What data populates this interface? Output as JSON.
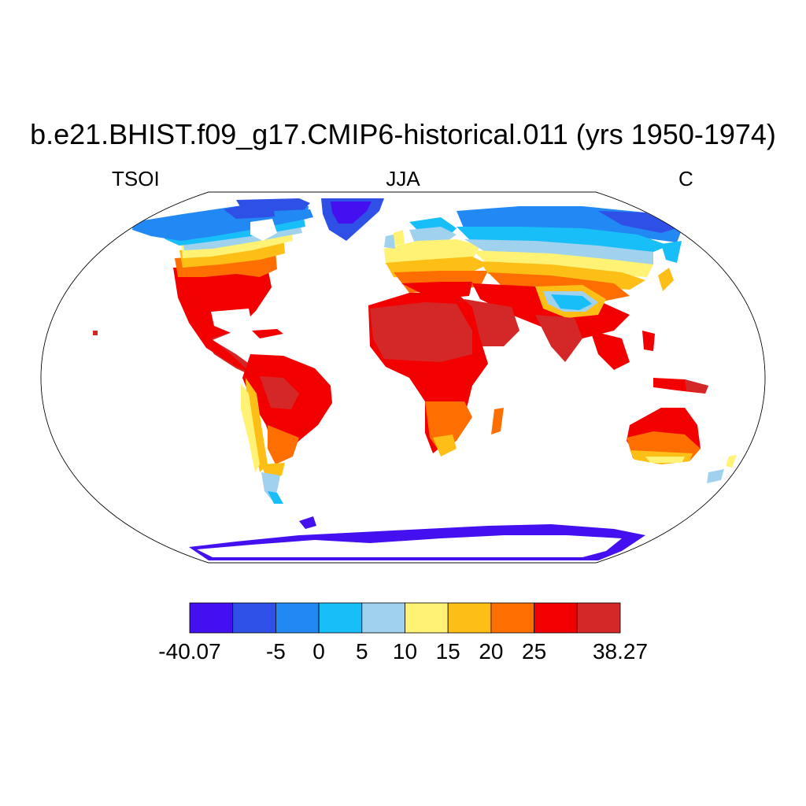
{
  "header": {
    "title": "b.e21.BHIST.f09_g17.CMIP6-historical.011 (yrs 1950-1974)",
    "left_label": "TSOI",
    "center_label": "JJA",
    "right_label": "C"
  },
  "colorbar": {
    "colors": [
      "#4410f0",
      "#2f50e6",
      "#2288f4",
      "#18bef8",
      "#a0d2ee",
      "#fff275",
      "#fdbf16",
      "#ff6e00",
      "#f20000",
      "#d42828"
    ],
    "labels": [
      "-40.07",
      "-5",
      "0",
      "5",
      "10",
      "15",
      "20",
      "25",
      "38.27"
    ],
    "min": -40.07,
    "max": 38.27
  }
}
